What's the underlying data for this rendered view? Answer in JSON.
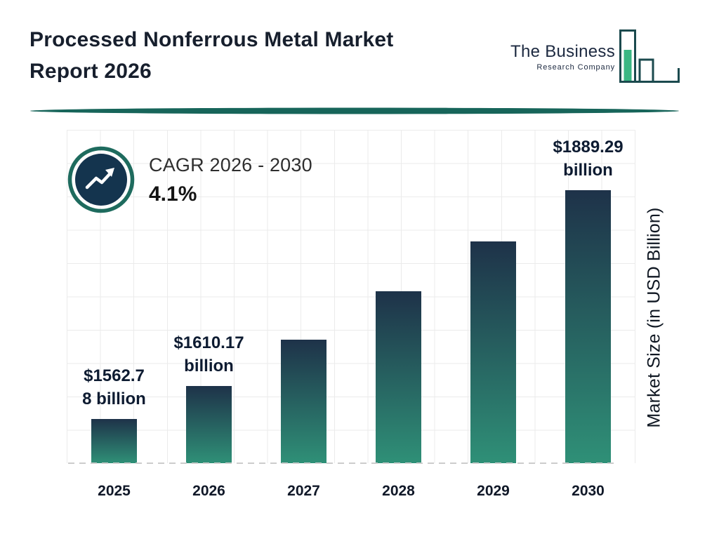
{
  "header": {
    "title": "Processed Nonferrous Metal Market\nReport 2026",
    "logo": {
      "name": "The Business",
      "tagline": "Research Company"
    }
  },
  "cagr": {
    "label": "CAGR 2026 - 2030",
    "value": "4.1%"
  },
  "chart_data": {
    "type": "bar",
    "title": "Processed Nonferrous Metal Market Report 2026",
    "categories": [
      "2025",
      "2026",
      "2027",
      "2028",
      "2029",
      "2030"
    ],
    "values": [
      1562.78,
      1610.17,
      1676.19,
      1744.91,
      1816.45,
      1889.29
    ],
    "bar_labels": [
      "$1562.7\n8 billion",
      "$1610.17\nbillion",
      "",
      "",
      "",
      "$1889.29\nbillion"
    ],
    "value_unit": "USD Billion",
    "xlabel": "",
    "ylabel": "Market Size (in USD Billion)",
    "ylim": [
      1500,
      1975
    ],
    "grid": true,
    "legend_position": "none",
    "annotations": [
      "CAGR 2026 - 2030: 4.1%"
    ],
    "bar_color_top": "#1e3249",
    "bar_color_bottom": "#2f9077"
  },
  "colors": {
    "divider_teal": "#17655a",
    "badge_ring": "#1e6b5e",
    "badge_fill": "#14344e",
    "logo_green": "#3ab783",
    "logo_outline": "#1b4a4e",
    "text_dark": "#101828"
  }
}
